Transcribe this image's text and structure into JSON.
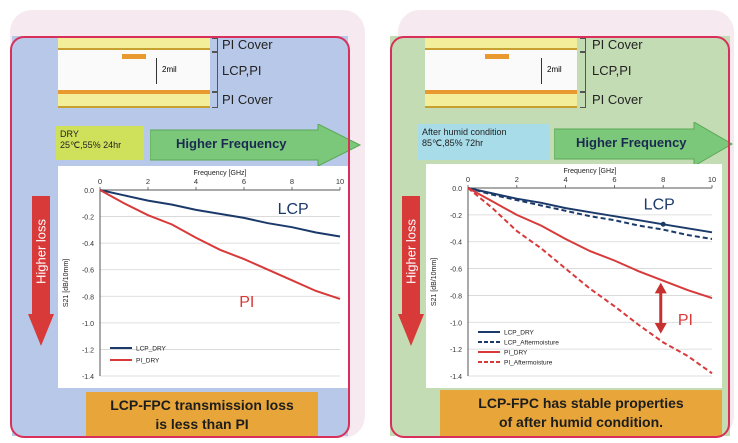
{
  "panels": [
    {
      "stack": {
        "top_label": "PI Cover",
        "mid_label": "LCP,PI",
        "bottom_label": "PI Cover",
        "thickness": "2mil"
      },
      "condition": {
        "line1": "DRY",
        "line2": "25℃,55%  24hr",
        "color": "#cfe05a"
      },
      "arrow_label": "Higher Frequency",
      "side_label": "Higher loss",
      "caption": {
        "line1": "LCP-FPC transmission loss",
        "line2": "is less than PI"
      },
      "bg_color": "#b8c8e8"
    },
    {
      "stack": {
        "top_label": "PI Cover",
        "mid_label": "LCP,PI",
        "bottom_label": "PI Cover",
        "thickness": "2mil"
      },
      "condition": {
        "line1": "After humid condition",
        "line2": "85℃,85%  72hr",
        "color": "#a8dce8"
      },
      "arrow_label": "Higher Frequency",
      "side_label": "Higher loss",
      "caption": {
        "line1": "LCP-FPC has stable properties",
        "line2": "of after humid condition."
      },
      "bg_color": "#c4dcb4"
    }
  ],
  "chart_data": [
    {
      "type": "line",
      "xlabel": "Frequency [GHz]",
      "ylabel": "S21 [dB/10mm]",
      "xlim": [
        0,
        10
      ],
      "ylim": [
        -1.4,
        0.0
      ],
      "xticks": [
        "0",
        "2",
        "4",
        "6",
        "8",
        "10"
      ],
      "yticks": [
        "0.0",
        "-0.2",
        "-0.4",
        "-0.6",
        "-0.8",
        "-1.0",
        "-1.2",
        "-1.4"
      ],
      "annotations": [
        {
          "text": "LCP",
          "color": "#1b3a6a"
        },
        {
          "text": "PI",
          "color": "#d83a3a"
        }
      ],
      "series": [
        {
          "name": "LCP_DRY",
          "color": "#1b3a6a",
          "dash": false,
          "x": [
            0,
            1,
            2,
            3,
            4,
            5,
            6,
            7,
            8,
            9,
            10
          ],
          "y": [
            0.0,
            -0.04,
            -0.08,
            -0.11,
            -0.15,
            -0.18,
            -0.21,
            -0.25,
            -0.28,
            -0.32,
            -0.35
          ]
        },
        {
          "name": "PI_DRY",
          "color": "#d83a3a",
          "dash": false,
          "x": [
            0,
            1,
            2,
            3,
            4,
            5,
            6,
            7,
            8,
            9,
            10
          ],
          "y": [
            0.0,
            -0.1,
            -0.19,
            -0.26,
            -0.36,
            -0.45,
            -0.52,
            -0.6,
            -0.68,
            -0.76,
            -0.82
          ]
        }
      ],
      "legend": "bottom-left"
    },
    {
      "type": "line",
      "xlabel": "Frequency [GHz]",
      "ylabel": "S21 [dB/10mm]",
      "xlim": [
        0,
        10
      ],
      "ylim": [
        -1.4,
        0.0
      ],
      "xticks": [
        "0",
        "2",
        "4",
        "6",
        "8",
        "10"
      ],
      "yticks": [
        "0.0",
        "-0.2",
        "-0.4",
        "-0.6",
        "-0.8",
        "-1.0",
        "-1.2",
        "-1.4"
      ],
      "annotations": [
        {
          "text": "LCP",
          "color": "#1b3a6a"
        },
        {
          "text": "PI",
          "color": "#d83a3a"
        }
      ],
      "series": [
        {
          "name": "LCP_DRY",
          "color": "#1b3a6a",
          "dash": false,
          "x": [
            0,
            1,
            2,
            3,
            4,
            5,
            6,
            7,
            8,
            9,
            10
          ],
          "y": [
            0.0,
            -0.04,
            -0.08,
            -0.11,
            -0.15,
            -0.18,
            -0.21,
            -0.24,
            -0.27,
            -0.3,
            -0.33
          ]
        },
        {
          "name": "LCP_Aftermoisture",
          "color": "#1b3a6a",
          "dash": true,
          "x": [
            0,
            1,
            2,
            3,
            4,
            5,
            6,
            7,
            8,
            9,
            10
          ],
          "y": [
            0.0,
            -0.05,
            -0.09,
            -0.13,
            -0.17,
            -0.21,
            -0.24,
            -0.28,
            -0.31,
            -0.35,
            -0.38
          ]
        },
        {
          "name": "PI_DRY",
          "color": "#d83a3a",
          "dash": false,
          "x": [
            0,
            1,
            2,
            3,
            4,
            5,
            6,
            7,
            8,
            9,
            10
          ],
          "y": [
            0.0,
            -0.1,
            -0.2,
            -0.28,
            -0.38,
            -0.47,
            -0.54,
            -0.62,
            -0.69,
            -0.76,
            -0.82
          ]
        },
        {
          "name": "PI_Aftermoisture",
          "color": "#d83a3a",
          "dash": true,
          "x": [
            0,
            1,
            2,
            3,
            4,
            5,
            6,
            7,
            8,
            9,
            10
          ],
          "y": [
            0.0,
            -0.15,
            -0.32,
            -0.45,
            -0.6,
            -0.75,
            -0.88,
            -1.02,
            -1.15,
            -1.25,
            -1.38
          ]
        }
      ],
      "legend": "bottom-left"
    }
  ]
}
